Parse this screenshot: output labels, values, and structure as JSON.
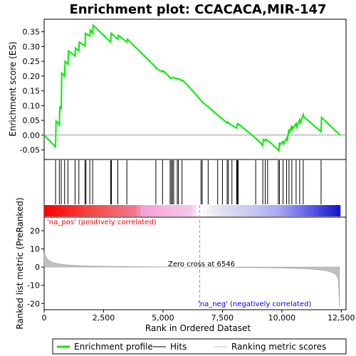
{
  "chart_data": {
    "type": "line",
    "title": "Enrichment plot: CCACACA,MIR-147",
    "top_panel": {
      "ylabel": "Enrichment score (ES)",
      "ylim": [
        -0.08,
        0.39
      ],
      "yticks": [
        -0.05,
        0.0,
        0.05,
        0.1,
        0.15,
        0.2,
        0.25,
        0.3,
        0.35
      ],
      "ytick_labels": [
        "-0.05",
        "0.00",
        "0.05",
        "0.10",
        "0.15",
        "0.20",
        "0.25",
        "0.30",
        "0.35"
      ],
      "series": [
        {
          "name": "Enrichment profile",
          "color": "#00ee00",
          "x": [
            0,
            480,
            500,
            640,
            660,
            720,
            740,
            860,
            880,
            1000,
            1020,
            1300,
            1320,
            1460,
            1480,
            1720,
            1740,
            1920,
            1940,
            2040,
            2060,
            2800,
            2820,
            3100,
            3120,
            3480,
            3500,
            4700,
            4720,
            4980,
            5000,
            5300,
            5320,
            5400,
            5420,
            5600,
            5620,
            5800,
            5820,
            6000,
            6600,
            6620,
            6900,
            7300,
            7700,
            7720,
            7800,
            8100,
            8120,
            8150,
            8900,
            9200,
            9220,
            9300,
            9320,
            9500,
            9850,
            9870,
            9900,
            9920,
            10050,
            10070,
            10200,
            10220,
            10300,
            10320,
            10420,
            10440,
            10600,
            10620,
            10750,
            10770,
            10900,
            10920,
            11650,
            11670,
            12450
          ],
          "y": [
            0.0,
            -0.04,
            0.048,
            0.035,
            0.095,
            0.09,
            0.21,
            0.2,
            0.25,
            0.24,
            0.285,
            0.268,
            0.295,
            0.285,
            0.315,
            0.302,
            0.345,
            0.335,
            0.355,
            0.345,
            0.372,
            0.315,
            0.345,
            0.325,
            0.338,
            0.315,
            0.325,
            0.23,
            0.225,
            0.215,
            0.218,
            0.196,
            0.192,
            0.194,
            0.196,
            0.19,
            0.192,
            0.185,
            0.186,
            0.172,
            0.118,
            0.114,
            0.096,
            0.068,
            0.041,
            0.045,
            0.038,
            0.024,
            0.036,
            0.039,
            -0.01,
            -0.035,
            -0.015,
            -0.018,
            -0.014,
            -0.024,
            -0.05,
            -0.055,
            -0.025,
            -0.032,
            -0.022,
            -0.03,
            -0.01,
            -0.02,
            0.02,
            0.008,
            0.032,
            0.02,
            0.04,
            0.028,
            0.052,
            0.04,
            0.07,
            0.062,
            0.012,
            0.06,
            0.0
          ]
        }
      ]
    },
    "hits_panel": {
      "series_name": "Hits",
      "hit_positions": [
        480,
        640,
        720,
        860,
        1000,
        1300,
        1460,
        1720,
        1760,
        1920,
        2040,
        2800,
        2830,
        3100,
        3480,
        4700,
        4980,
        5300,
        5350,
        5400,
        5450,
        5600,
        5650,
        5800,
        6600,
        6650,
        6900,
        7300,
        7500,
        7700,
        7750,
        7900,
        8100,
        8130,
        8160,
        8900,
        9200,
        9300,
        9400,
        9850,
        9900,
        10050,
        10200,
        10300,
        10420,
        10600,
        10750,
        10900,
        11650
      ]
    },
    "ranking_panel": {
      "series_name": "Ranking metric scores",
      "ylabel": "Ranked list metric (PreRanked)",
      "ylim": [
        -23,
        27
      ],
      "yticks": [
        -20,
        -10,
        0,
        10,
        20
      ],
      "ytick_labels": [
        "-20",
        "-10",
        "0",
        "10",
        "20"
      ],
      "x": [
        0,
        100,
        200,
        350,
        500,
        700,
        1000,
        1500,
        2000,
        3000,
        4000,
        5000,
        6000,
        6546,
        7000,
        8000,
        9000,
        10000,
        10500,
        11000,
        11500,
        11800,
        12000,
        12200,
        12300,
        12380,
        12420
      ],
      "y": [
        8,
        5,
        3.6,
        2.6,
        2.1,
        1.6,
        1.2,
        0.8,
        0.6,
        0.35,
        0.2,
        0.12,
        0.05,
        0.0,
        -0.05,
        -0.15,
        -0.3,
        -0.5,
        -0.7,
        -0.95,
        -1.4,
        -1.9,
        -2.5,
        -3.4,
        -4.5,
        -7,
        -22
      ],
      "zero_cross_label": "Zero cross at 6546",
      "zero_cross": 6546,
      "pos_label": "'na_pos' (positively correlated)",
      "neg_label": "'na_neg' (negatively correlated)",
      "pos_color": "#ff0000",
      "neg_color": "#0000ff"
    },
    "xlabel": "Rank in Ordered Dataset",
    "xlim": [
      0,
      12700
    ],
    "xticks": [
      0,
      2500,
      5000,
      7500,
      10000,
      12500
    ],
    "xtick_labels": [
      "0",
      "2,500",
      "5,000",
      "7,500",
      "10,000",
      "12,500"
    ],
    "n_genes": 12450,
    "legend": [
      {
        "label": "Enrichment profile",
        "color": "#00ee00"
      },
      {
        "label": "Hits",
        "color": "#000000"
      },
      {
        "label": "Ranking metric scores",
        "color": "#c0c0c0"
      }
    ]
  }
}
